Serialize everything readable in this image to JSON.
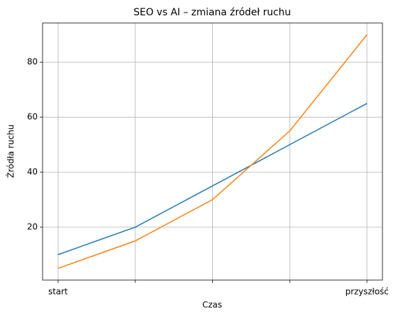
{
  "chart_data": {
    "type": "line",
    "title": "SEO vs AI – zmiana źródeł ruchu",
    "x_label": "Czas",
    "y_label": "Źródła ruchu",
    "categories": [
      "start",
      null,
      null,
      null,
      "przyszłość"
    ],
    "series": [
      {
        "color": "#1f77b4",
        "values": [
          10,
          20,
          35,
          50,
          65
        ]
      },
      {
        "color": "#ff7f0e",
        "values": [
          5,
          15,
          30,
          55,
          90
        ]
      }
    ],
    "ylim": [
      0.75,
      94.25
    ],
    "yticks": [
      20,
      40,
      60,
      80
    ],
    "grid": true
  }
}
